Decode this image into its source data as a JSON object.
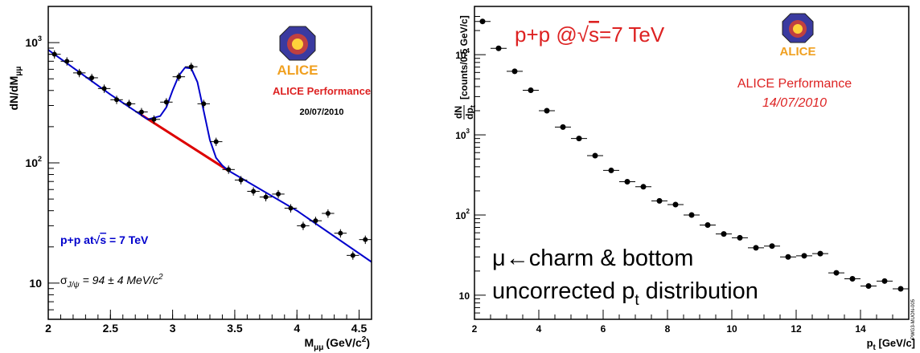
{
  "chart_data": [
    {
      "type": "scatter",
      "xlabel_main": "M",
      "xlabel_sub": "μμ",
      "xlabel_unit": "(GeV/c",
      "xlabel_sup": "2",
      "xlabel_end": ")",
      "ylabel_main": "dN/dM",
      "ylabel_sub": "μμ",
      "xlim": [
        2.0,
        4.6
      ],
      "ylim": [
        5,
        2000
      ],
      "log_y": true,
      "grid": false,
      "x_ticks": [
        {
          "v": 2.0,
          "label": "2"
        },
        {
          "v": 2.5,
          "label": "2.5"
        },
        {
          "v": 3.0,
          "label": "3"
        },
        {
          "v": 3.5,
          "label": "3.5"
        },
        {
          "v": 4.0,
          "label": "4"
        },
        {
          "v": 4.5,
          "label": "4.5"
        }
      ],
      "y_ticks": [
        {
          "v": 10,
          "base": "10",
          "exp": ""
        },
        {
          "v": 100,
          "base": "10",
          "exp": "2"
        },
        {
          "v": 1000,
          "base": "10",
          "exp": "3"
        }
      ],
      "points": [
        {
          "x": 2.05,
          "y": 800
        },
        {
          "x": 2.15,
          "y": 700
        },
        {
          "x": 2.25,
          "y": 560
        },
        {
          "x": 2.35,
          "y": 510
        },
        {
          "x": 2.45,
          "y": 415
        },
        {
          "x": 2.55,
          "y": 335
        },
        {
          "x": 2.65,
          "y": 310
        },
        {
          "x": 2.75,
          "y": 265
        },
        {
          "x": 2.85,
          "y": 230
        },
        {
          "x": 2.95,
          "y": 320
        },
        {
          "x": 3.05,
          "y": 520
        },
        {
          "x": 3.15,
          "y": 630
        },
        {
          "x": 3.25,
          "y": 310
        },
        {
          "x": 3.35,
          "y": 150
        },
        {
          "x": 3.45,
          "y": 88
        },
        {
          "x": 3.55,
          "y": 72
        },
        {
          "x": 3.65,
          "y": 58
        },
        {
          "x": 3.75,
          "y": 52
        },
        {
          "x": 3.85,
          "y": 55
        },
        {
          "x": 3.95,
          "y": 42
        },
        {
          "x": 4.05,
          "y": 30
        },
        {
          "x": 4.15,
          "y": 33
        },
        {
          "x": 4.25,
          "y": 38
        },
        {
          "x": 4.35,
          "y": 26
        },
        {
          "x": 4.45,
          "y": 17
        },
        {
          "x": 4.55,
          "y": 23
        }
      ],
      "x_half_width": 0.05,
      "total_fit": [
        {
          "x": 2.0,
          "y": 870
        },
        {
          "x": 2.5,
          "y": 370
        },
        {
          "x": 2.8,
          "y": 230
        },
        {
          "x": 2.9,
          "y": 245
        },
        {
          "x": 2.95,
          "y": 290
        },
        {
          "x": 3.0,
          "y": 400
        },
        {
          "x": 3.05,
          "y": 530
        },
        {
          "x": 3.1,
          "y": 620
        },
        {
          "x": 3.15,
          "y": 610
        },
        {
          "x": 3.2,
          "y": 470
        },
        {
          "x": 3.25,
          "y": 270
        },
        {
          "x": 3.3,
          "y": 155
        },
        {
          "x": 3.35,
          "y": 110
        },
        {
          "x": 3.4,
          "y": 95
        },
        {
          "x": 3.45,
          "y": 86
        },
        {
          "x": 4.0,
          "y": 40
        },
        {
          "x": 4.6,
          "y": 15
        }
      ],
      "background_fit": [
        {
          "x": 2.75,
          "y": 250
        },
        {
          "x": 3.45,
          "y": 86
        }
      ],
      "total_fit_color": "#0000cc",
      "background_fit_color": "#dd0000",
      "text": {
        "perf": "ALICE Performance",
        "date": "20/07/2010",
        "energy_prefix": "p+p at",
        "energy_sqrt": "√",
        "energy_s": "s",
        "energy_suffix": " = 7 TeV",
        "sigma_sym": "σ",
        "sigma_sub": "J/ψ",
        "sigma_val": " = 94 ± 4 MeV/c",
        "sigma_sup": "2",
        "logo": "ALICE"
      }
    },
    {
      "type": "scatter",
      "xlabel_main": "p",
      "xlabel_sub": "t",
      "xlabel_unit": " [GeV/c]",
      "ylabel_num": "dN",
      "ylabel_den": "dp",
      "ylabel_den_sub": "t",
      "ylabel_unit": "[counts/0.5 GeV/c]",
      "xlim": [
        2.0,
        15.5
      ],
      "ylim": [
        5,
        40000
      ],
      "log_y": true,
      "grid": false,
      "x_ticks": [
        {
          "v": 2,
          "label": "2"
        },
        {
          "v": 4,
          "label": "4"
        },
        {
          "v": 6,
          "label": "6"
        },
        {
          "v": 8,
          "label": "8"
        },
        {
          "v": 10,
          "label": "10"
        },
        {
          "v": 12,
          "label": "12"
        },
        {
          "v": 14,
          "label": "14"
        }
      ],
      "y_ticks": [
        {
          "v": 10,
          "base": "10",
          "exp": ""
        },
        {
          "v": 100,
          "base": "10",
          "exp": "2"
        },
        {
          "v": 1000,
          "base": "10",
          "exp": "3"
        },
        {
          "v": 10000,
          "base": "10",
          "exp": "4"
        }
      ],
      "points": [
        {
          "x": 2.25,
          "y": 26000
        },
        {
          "x": 2.75,
          "y": 12000
        },
        {
          "x": 3.25,
          "y": 6200
        },
        {
          "x": 3.75,
          "y": 3600
        },
        {
          "x": 4.25,
          "y": 2000
        },
        {
          "x": 4.75,
          "y": 1250
        },
        {
          "x": 5.25,
          "y": 900
        },
        {
          "x": 5.75,
          "y": 550
        },
        {
          "x": 6.25,
          "y": 360
        },
        {
          "x": 6.75,
          "y": 260
        },
        {
          "x": 7.25,
          "y": 225
        },
        {
          "x": 7.75,
          "y": 150
        },
        {
          "x": 8.25,
          "y": 135
        },
        {
          "x": 8.75,
          "y": 100
        },
        {
          "x": 9.25,
          "y": 75
        },
        {
          "x": 9.75,
          "y": 58
        },
        {
          "x": 10.25,
          "y": 52
        },
        {
          "x": 10.75,
          "y": 39
        },
        {
          "x": 11.25,
          "y": 41
        },
        {
          "x": 11.75,
          "y": 30
        },
        {
          "x": 12.25,
          "y": 31
        },
        {
          "x": 12.75,
          "y": 33
        },
        {
          "x": 13.25,
          "y": 19
        },
        {
          "x": 13.75,
          "y": 16
        },
        {
          "x": 14.25,
          "y": 13
        },
        {
          "x": 14.75,
          "y": 15
        },
        {
          "x": 15.25,
          "y": 12
        }
      ],
      "x_half_width": 0.25,
      "text": {
        "energy_prefix": "p+p @",
        "energy_sqrt": "√",
        "energy_s": "s",
        "energy_suffix": "=7 TeV",
        "perf": "ALICE Performance",
        "date": "14/07/2010",
        "line1": "μ←charm & bottom",
        "line2_prefix": "uncorrected p",
        "line2_sub": "t",
        "line2_suffix": " distribution",
        "tag": "PWG3-MUON-005",
        "logo": "ALICE"
      },
      "red_color": "#dd2222"
    }
  ]
}
